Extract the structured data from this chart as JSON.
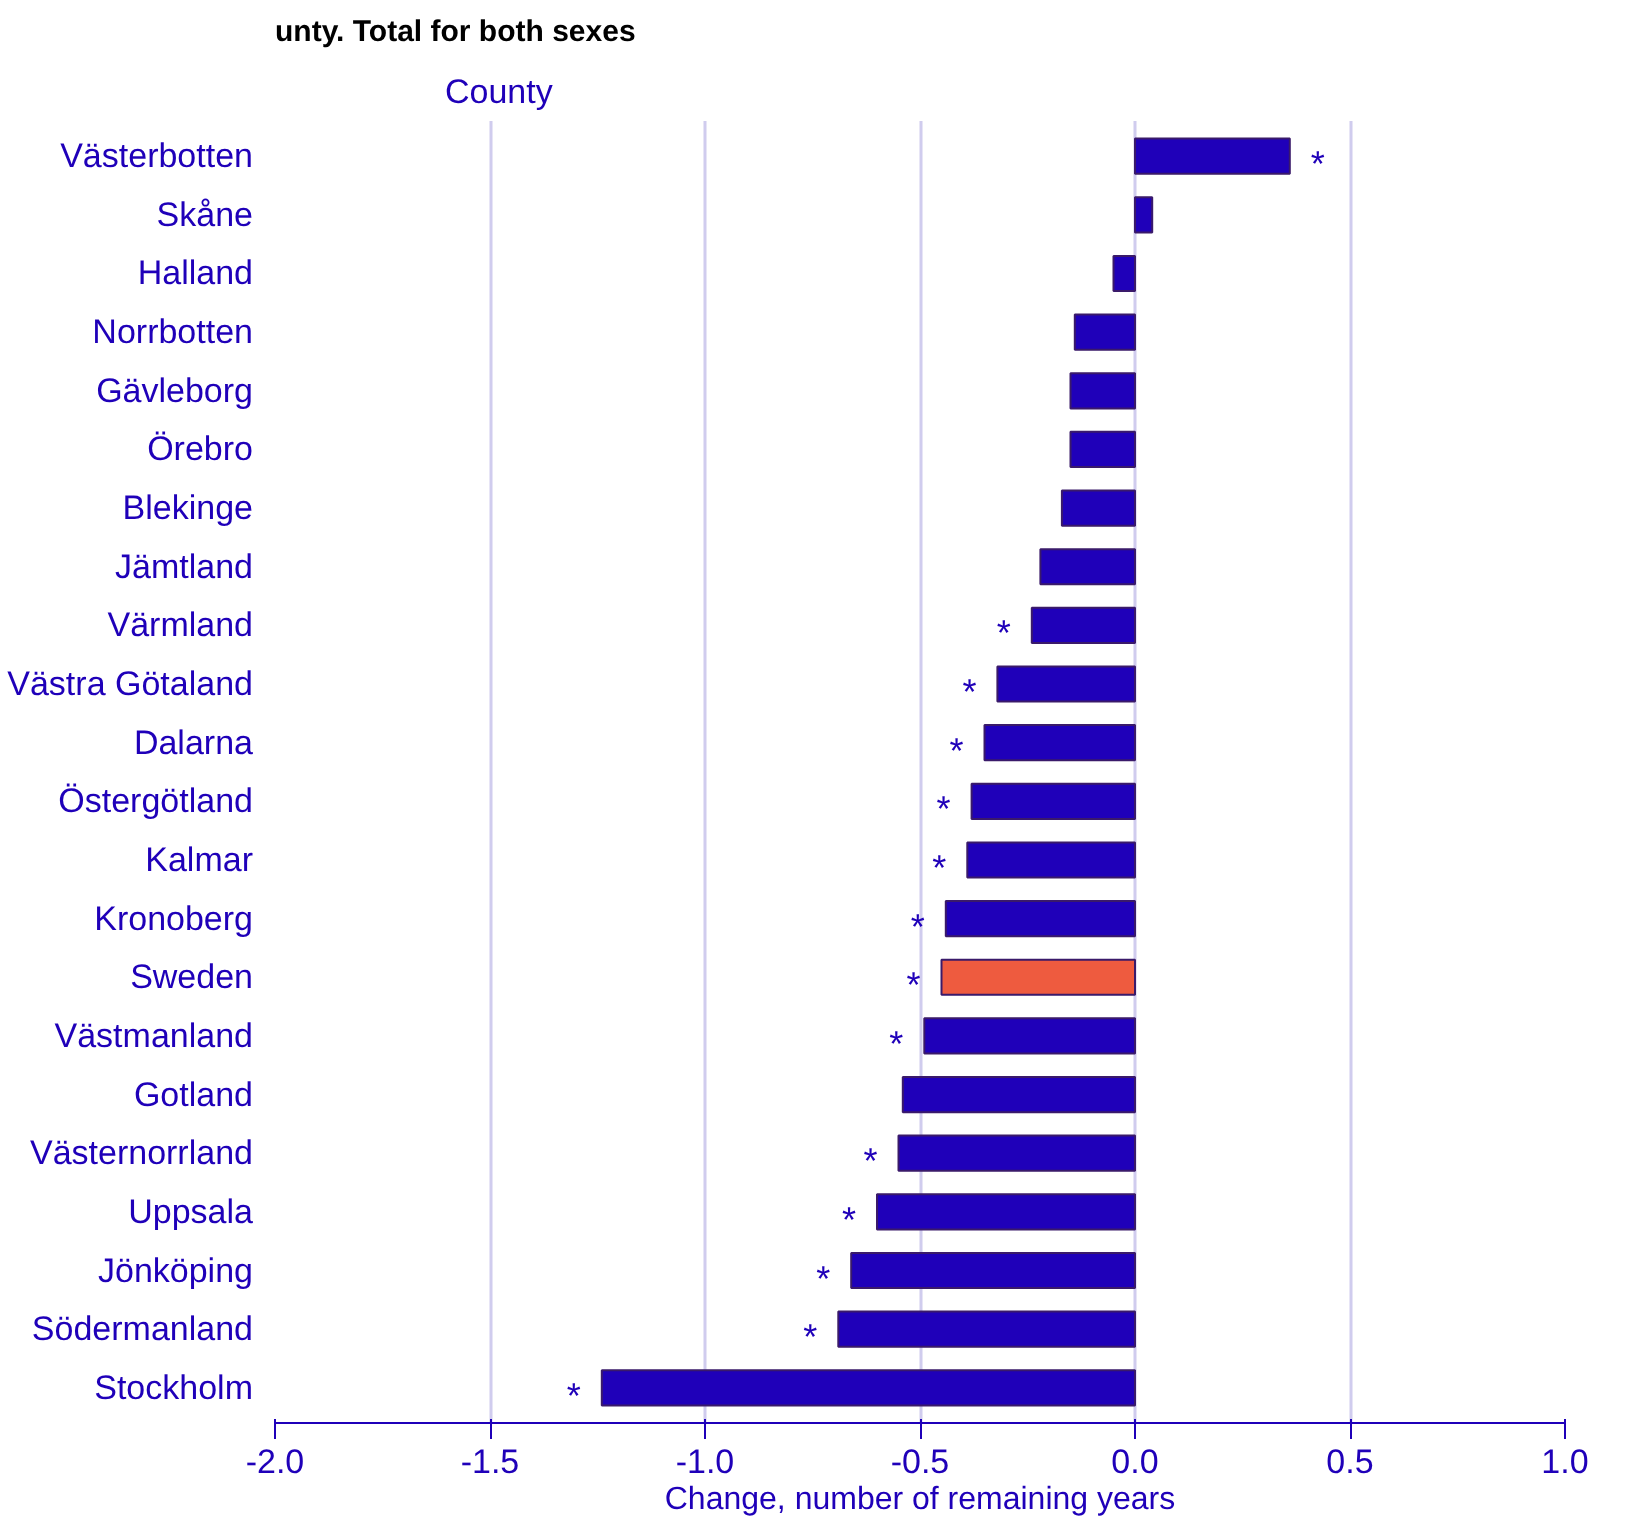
{
  "chart_data": {
    "type": "bar",
    "orientation": "horizontal",
    "title": "unty. Total for both sexes",
    "ylabel": "County",
    "xlabel": "Change, number of remaining years",
    "categories": [
      "Västerbotten",
      "Skåne",
      "Halland",
      "Norrbotten",
      "Gävleborg",
      "Örebro",
      "Blekinge",
      "Jämtland",
      "Värmland",
      "Västra Götaland",
      "Dalarna",
      "Östergötland",
      "Kalmar",
      "Kronoberg",
      "Sweden",
      "Västmanland",
      "Gotland",
      "Västernorrland",
      "Uppsala",
      "Jönköping",
      "Södermanland",
      "Stockholm"
    ],
    "values": [
      0.36,
      0.04,
      -0.05,
      -0.14,
      -0.15,
      -0.15,
      -0.17,
      -0.22,
      -0.24,
      -0.32,
      -0.35,
      -0.38,
      -0.39,
      -0.44,
      -0.45,
      -0.49,
      -0.54,
      -0.55,
      -0.6,
      -0.66,
      -0.69,
      -1.24
    ],
    "colors": [
      "#1f00b9",
      "#1f00b9",
      "#1f00b9",
      "#1f00b9",
      "#1f00b9",
      "#1f00b9",
      "#1f00b9",
      "#1f00b9",
      "#1f00b9",
      "#1f00b9",
      "#1f00b9",
      "#1f00b9",
      "#1f00b9",
      "#1f00b9",
      "#ee5b3f",
      "#1f00b9",
      "#1f00b9",
      "#1f00b9",
      "#1f00b9",
      "#1f00b9",
      "#1f00b9",
      "#1f00b9"
    ],
    "xlim": [
      -2.0,
      1.0
    ],
    "xticks": [
      {
        "value": -2,
        "label": "-2.0"
      },
      {
        "value": -1.5,
        "label": "-1.5"
      },
      {
        "value": -1,
        "label": "-1.0"
      },
      {
        "value": -0.5,
        "label": "-0.5"
      },
      {
        "value": 0,
        "label": "0.0"
      },
      {
        "value": 0.5,
        "label": "0.5"
      },
      {
        "value": 1,
        "label": "1.0"
      }
    ],
    "grid": "x",
    "value_labels": [
      "*",
      null,
      null,
      null,
      null,
      null,
      null,
      null,
      "*",
      "*",
      "*",
      "*",
      "*",
      "*",
      "*",
      "*",
      null,
      "*",
      "*",
      "*",
      "*",
      "*"
    ]
  }
}
